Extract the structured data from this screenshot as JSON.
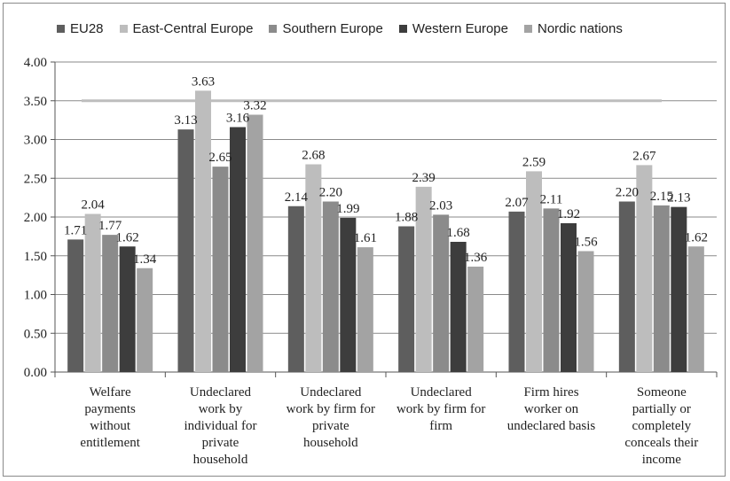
{
  "chart_data": {
    "type": "bar",
    "title": "",
    "xlabel": "",
    "ylabel": "",
    "ylim": [
      0,
      4
    ],
    "yticks": [
      "0.00",
      "0.50",
      "1.00",
      "1.50",
      "2.00",
      "2.50",
      "3.00",
      "3.50",
      "4.00"
    ],
    "grid": "horizontal",
    "legend_position": "top",
    "categories": [
      "Welfare payments without entitlement",
      "Undeclared work by individual for private household",
      "Undeclared work by firm for private household",
      "Undeclared work by firm for firm",
      "Firm hires worker on undeclared basis",
      "Someone partially or completely conceals their income"
    ],
    "category_lines": [
      [
        "Welfare",
        "payments",
        "without",
        "entitlement"
      ],
      [
        "Undeclared",
        "work by",
        "individual for",
        "private",
        "household"
      ],
      [
        "Undeclared",
        "work by firm for",
        "private",
        "household"
      ],
      [
        "Undeclared",
        "work by firm for",
        "firm"
      ],
      [
        "Firm hires",
        "worker on",
        "undeclared basis"
      ],
      [
        "Someone",
        "partially or",
        "completely",
        "conceals their",
        "income"
      ]
    ],
    "series": [
      {
        "name": "EU28",
        "color": "#5e5e5e",
        "values": [
          1.71,
          3.13,
          2.14,
          1.88,
          2.07,
          2.2
        ],
        "labels": [
          "1.71",
          "3.13",
          "2.14",
          "1.88",
          "2.07",
          "2.20"
        ]
      },
      {
        "name": "East-Central Europe",
        "color": "#bdbdbd",
        "values": [
          2.04,
          3.63,
          2.68,
          2.39,
          2.59,
          2.67
        ],
        "labels": [
          "2.04",
          "3.63",
          "2.68",
          "2.39",
          "2.59",
          "2.67"
        ]
      },
      {
        "name": "Southern Europe",
        "color": "#8b8b8b",
        "values": [
          1.77,
          2.65,
          2.2,
          2.03,
          2.11,
          2.15
        ],
        "labels": [
          "1.77",
          "2.65",
          "2.20",
          "2.03",
          "2.11",
          "2.15"
        ]
      },
      {
        "name": "Western Europe",
        "color": "#3d3d3d",
        "values": [
          1.62,
          3.16,
          1.99,
          1.68,
          1.92,
          2.13
        ],
        "labels": [
          "1.62",
          "3.16",
          "1.99",
          "1.68",
          "1.92",
          "2.13"
        ]
      },
      {
        "name": "Nordic nations",
        "color": "#a3a3a3",
        "values": [
          1.34,
          3.32,
          1.61,
          1.36,
          1.56,
          1.62
        ],
        "labels": [
          "1.34",
          "3.32",
          "1.61",
          "1.36",
          "1.56",
          "1.62"
        ]
      }
    ],
    "reference_line": {
      "value": 3.5,
      "color": "#bdbdbd"
    }
  }
}
